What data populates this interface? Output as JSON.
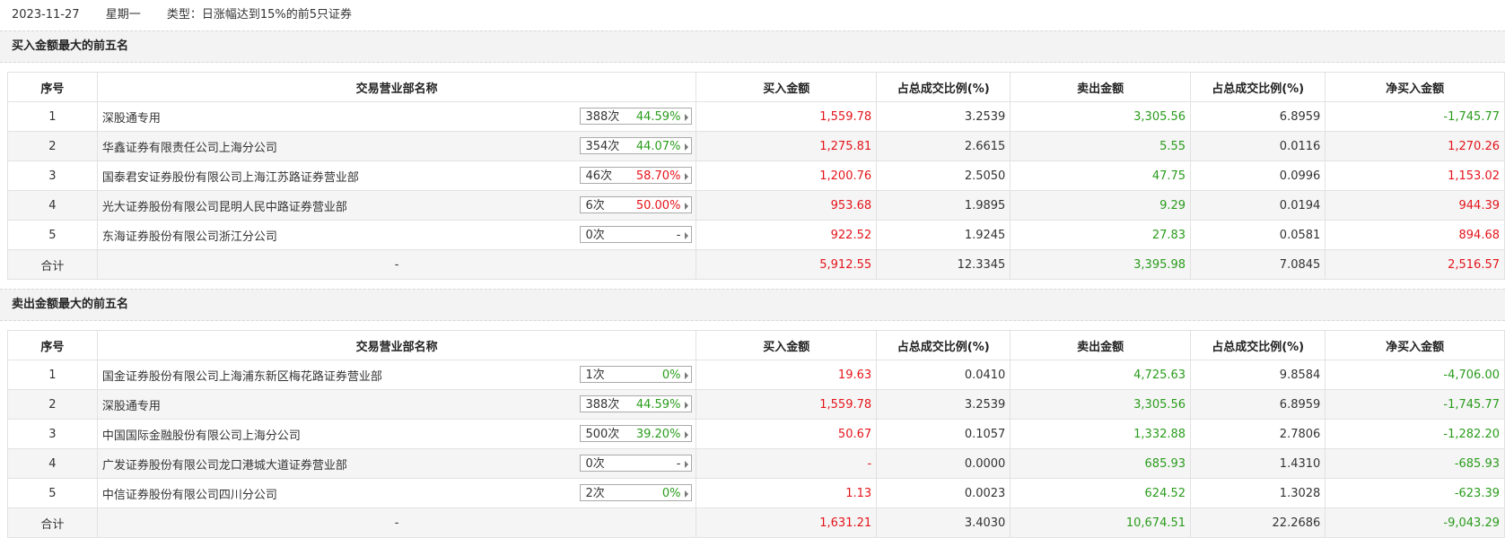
{
  "header": {
    "date": "2023-11-27",
    "weekday": "星期一",
    "type_text": "类型：日涨幅达到15%的前5只证券"
  },
  "colors": {
    "up": "#e4151b",
    "down": "#2a9c1c"
  },
  "columns": [
    "序号",
    "交易营业部名称",
    "买入金额",
    "占总成交比例(%)",
    "卖出金额",
    "占总成交比例(%)",
    "净买入金额"
  ],
  "buy_section": {
    "title": "买入金额最大的前五名",
    "rows": [
      {
        "idx": "1",
        "name": "深股通专用",
        "times": "388次",
        "rate": "44.59%",
        "rate_color": "green",
        "buy": "1,559.78",
        "buy_pct": "3.2539",
        "sell": "3,305.56",
        "sell_pct": "6.8959",
        "net": "-1,745.77",
        "net_color": "green"
      },
      {
        "idx": "2",
        "name": "华鑫证券有限责任公司上海分公司",
        "times": "354次",
        "rate": "44.07%",
        "rate_color": "green",
        "buy": "1,275.81",
        "buy_pct": "2.6615",
        "sell": "5.55",
        "sell_pct": "0.0116",
        "net": "1,270.26",
        "net_color": "red"
      },
      {
        "idx": "3",
        "name": "国泰君安证券股份有限公司上海江苏路证券营业部",
        "times": "46次",
        "rate": "58.70%",
        "rate_color": "red",
        "buy": "1,200.76",
        "buy_pct": "2.5050",
        "sell": "47.75",
        "sell_pct": "0.0996",
        "net": "1,153.02",
        "net_color": "red"
      },
      {
        "idx": "4",
        "name": "光大证券股份有限公司昆明人民中路证券营业部",
        "times": "6次",
        "rate": "50.00%",
        "rate_color": "red",
        "buy": "953.68",
        "buy_pct": "1.9895",
        "sell": "9.29",
        "sell_pct": "0.0194",
        "net": "944.39",
        "net_color": "red"
      },
      {
        "idx": "5",
        "name": "东海证券股份有限公司浙江分公司",
        "times": "0次",
        "rate": "-",
        "rate_color": "gray",
        "buy": "922.52",
        "buy_pct": "1.9245",
        "sell": "27.83",
        "sell_pct": "0.0581",
        "net": "894.68",
        "net_color": "red"
      }
    ],
    "total": {
      "label": "合计",
      "name": "-",
      "buy": "5,912.55",
      "buy_pct": "12.3345",
      "sell": "3,395.98",
      "sell_pct": "7.0845",
      "net": "2,516.57",
      "net_color": "red"
    }
  },
  "sell_section": {
    "title": "卖出金额最大的前五名",
    "rows": [
      {
        "idx": "1",
        "name": "国金证券股份有限公司上海浦东新区梅花路证券营业部",
        "times": "1次",
        "rate": "0%",
        "rate_color": "green",
        "buy": "19.63",
        "buy_pct": "0.0410",
        "sell": "4,725.63",
        "sell_pct": "9.8584",
        "net": "-4,706.00",
        "net_color": "green"
      },
      {
        "idx": "2",
        "name": "深股通专用",
        "times": "388次",
        "rate": "44.59%",
        "rate_color": "green",
        "buy": "1,559.78",
        "buy_pct": "3.2539",
        "sell": "3,305.56",
        "sell_pct": "6.8959",
        "net": "-1,745.77",
        "net_color": "green"
      },
      {
        "idx": "3",
        "name": "中国国际金融股份有限公司上海分公司",
        "times": "500次",
        "rate": "39.20%",
        "rate_color": "green",
        "buy": "50.67",
        "buy_pct": "0.1057",
        "sell": "1,332.88",
        "sell_pct": "2.7806",
        "net": "-1,282.20",
        "net_color": "green"
      },
      {
        "idx": "4",
        "name": "广发证券股份有限公司龙口港城大道证券营业部",
        "times": "0次",
        "rate": "-",
        "rate_color": "gray",
        "buy": "-",
        "buy_pct": "0.0000",
        "sell": "685.93",
        "sell_pct": "1.4310",
        "net": "-685.93",
        "net_color": "green"
      },
      {
        "idx": "5",
        "name": "中信证券股份有限公司四川分公司",
        "times": "2次",
        "rate": "0%",
        "rate_color": "green",
        "buy": "1.13",
        "buy_pct": "0.0023",
        "sell": "624.52",
        "sell_pct": "1.3028",
        "net": "-623.39",
        "net_color": "green"
      }
    ],
    "total": {
      "label": "合计",
      "name": "-",
      "buy": "1,631.21",
      "buy_pct": "3.4030",
      "sell": "10,674.51",
      "sell_pct": "22.2686",
      "net": "-9,043.29",
      "net_color": "green"
    }
  }
}
